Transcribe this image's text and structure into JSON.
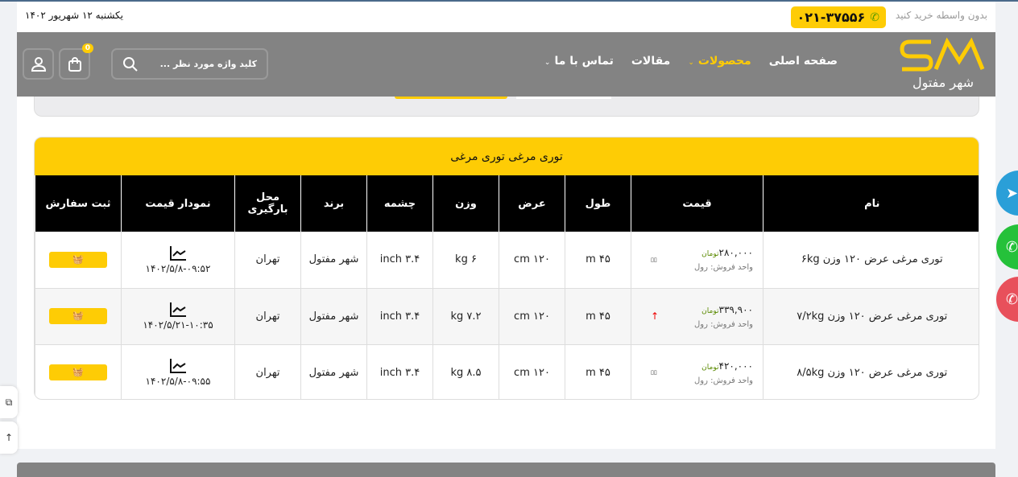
{
  "topbar": {
    "slogan": "بدون واسطه خرید کنید",
    "phone": "۰۲۱-۳۷۵۵۶",
    "date": "یکشنبه ۱۲ شهریور ۱۴۰۲"
  },
  "header": {
    "logo_text": "شهر مفتول",
    "nav": [
      {
        "label": "صفحه اصلی"
      },
      {
        "label": "محصولات"
      },
      {
        "label": "مقالات"
      },
      {
        "label": "تماس با ما"
      }
    ],
    "search_placeholder": "کلید واژه مورد نظر ...",
    "cart_count": "0"
  },
  "colors": {
    "accent": "#fecc05",
    "header": "#838383"
  },
  "table": {
    "title": "توری مرغی  توری مرغی",
    "columns": [
      "نام",
      "قیمت",
      "طول",
      "عرض",
      "وزن",
      "چشمه",
      "برند",
      "محل بارگیری",
      "نمودار قیمت",
      "ثبت سفارش"
    ],
    "rows": [
      {
        "name": "توری مرغی عرض ۱۲۰ وزن ۶kg",
        "price": "۲۸۰,۰۰۰",
        "currency": "تومان",
        "unit": "واحد فروش: رول",
        "trend": "▯▯",
        "length": "۴۵ m",
        "width": "۱۲۰ cm",
        "weight": "۶ kg",
        "mesh": "۳.۴ inch",
        "brand": "شهر مفتول",
        "location": "تهران",
        "chart_date": "۱۴۰۲/۵/۸-۰۹:۵۲"
      },
      {
        "name": "توری مرغی عرض ۱۲۰ وزن ۷/۲kg",
        "price": "۳۳۹,۹۰۰",
        "currency": "تومان",
        "unit": "واحد فروش: رول",
        "trend": "↑",
        "length": "۴۵ m",
        "width": "۱۲۰ cm",
        "weight": "۷.۲ kg",
        "mesh": "۳.۴ inch",
        "brand": "شهر مفتول",
        "location": "تهران",
        "chart_date": "۱۴۰۲/۵/۲۱-۱۰:۳۵"
      },
      {
        "name": "توری مرغی عرض ۱۲۰ وزن ۸/۵kg",
        "price": "۴۲۰,۰۰۰",
        "currency": "تومان",
        "unit": "واحد فروش: رول",
        "trend": "▯▯",
        "length": "۴۵ m",
        "width": "۱۲۰ cm",
        "weight": "۸.۵ kg",
        "mesh": "۳.۴ inch",
        "brand": "شهر مفتول",
        "location": "تهران",
        "chart_date": "۱۴۰۲/۵/۸-۰۹:۵۵"
      }
    ]
  }
}
